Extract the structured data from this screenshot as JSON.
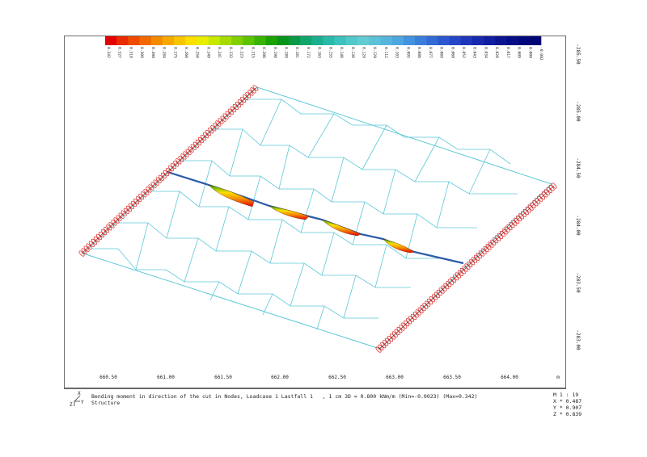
{
  "colorbar": {
    "labels": [
      "0.342",
      "0.327",
      "0.318",
      "0.309",
      "0.300",
      "0.284",
      "0.275",
      "0.266",
      "0.258",
      "0.249",
      "0.241",
      "0.232",
      "0.223",
      "0.215",
      "0.206",
      "0.198",
      "0.189",
      "0.181",
      "0.172",
      "0.163",
      "0.155",
      "0.146",
      "0.138",
      "0.129",
      "0.120",
      "0.112",
      "0.103",
      "0.095",
      "0.086",
      "0.077",
      "0.069",
      "0.060",
      "0.052",
      "0.043",
      "0.034",
      "0.026",
      "0.017",
      "0.009",
      "0.000",
      "-0.002"
    ],
    "colors": [
      "#e60000",
      "#ea2a00",
      "#ef4b00",
      "#f26800",
      "#f48a00",
      "#f7a900",
      "#f9c500",
      "#fbe000",
      "#e9ee00",
      "#c8e800",
      "#a6dc00",
      "#82cf00",
      "#5ec300",
      "#3ab400",
      "#1aa300",
      "#08931a",
      "#0a9a45",
      "#10a56b",
      "#1bb08d",
      "#2abaa9",
      "#3dc2bd",
      "#52c8cb",
      "#62cbd3",
      "#5cc2d8",
      "#55b5dd",
      "#4ca6e0",
      "#4393e0",
      "#3a7fdc",
      "#336bd6",
      "#2c58cf",
      "#2546c6",
      "#1e36bb",
      "#1729ad",
      "#101e9f",
      "#0a1592",
      "#050d86",
      "#02087c",
      "#000575"
    ]
  },
  "x_axis": {
    "labels": [
      "660.50",
      "661.00",
      "661.50",
      "662.00",
      "662.50",
      "663.00",
      "663.50",
      "664.00"
    ],
    "unit": "m"
  },
  "y_axis": {
    "labels": [
      "-285.50",
      "-285.00",
      "-284.50",
      "-284.00",
      "-283.50",
      "-283.00"
    ]
  },
  "caption": {
    "line1": "Bending moment in direction of the cut in Nodes, Loadcase 1 Lastfall 1   , 1 cm 3D = 0.800 kNm/m (Min=-0.0023) (Max=0.342)",
    "line2": "Structure"
  },
  "scale": {
    "ratio": "M 1 : 19",
    "x": "X * 0.487",
    "y": "Y * 0.907",
    "z": "Z * 0.839"
  },
  "axis_triad": {
    "labels": [
      "X",
      "Y",
      "Z"
    ]
  }
}
